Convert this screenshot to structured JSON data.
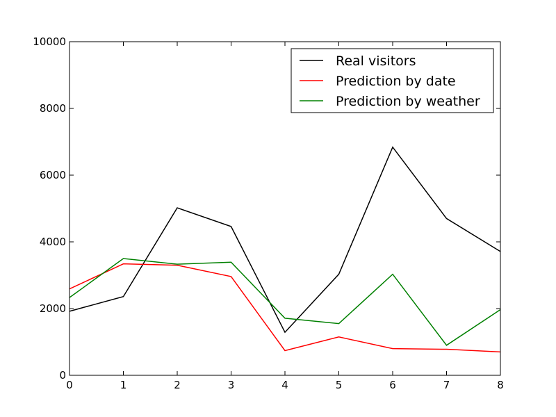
{
  "chart_data": {
    "type": "line",
    "title": "",
    "xlabel": "",
    "ylabel": "",
    "x": [
      0,
      1,
      2,
      3,
      4,
      5,
      6,
      7,
      8
    ],
    "xlim": [
      0,
      8
    ],
    "ylim": [
      0,
      10000
    ],
    "xticks": [
      "0",
      "1",
      "2",
      "3",
      "4",
      "5",
      "6",
      "7",
      "8"
    ],
    "yticks": [
      "0",
      "2000",
      "4000",
      "6000",
      "8000",
      "10000"
    ],
    "grid": false,
    "legend_position": "top-right",
    "series": [
      {
        "name": "Real visitors",
        "color": "#000000",
        "values": [
          1920,
          2360,
          5020,
          4460,
          1290,
          3030,
          6840,
          4700,
          3710
        ]
      },
      {
        "name": "Prediction by date",
        "color": "#ff0000",
        "values": [
          2590,
          3340,
          3300,
          2960,
          740,
          1150,
          800,
          780,
          700
        ]
      },
      {
        "name": "Prediction by weather",
        "color": "#008000",
        "values": [
          2330,
          3500,
          3330,
          3390,
          1710,
          1550,
          3030,
          900,
          1970
        ]
      }
    ]
  }
}
